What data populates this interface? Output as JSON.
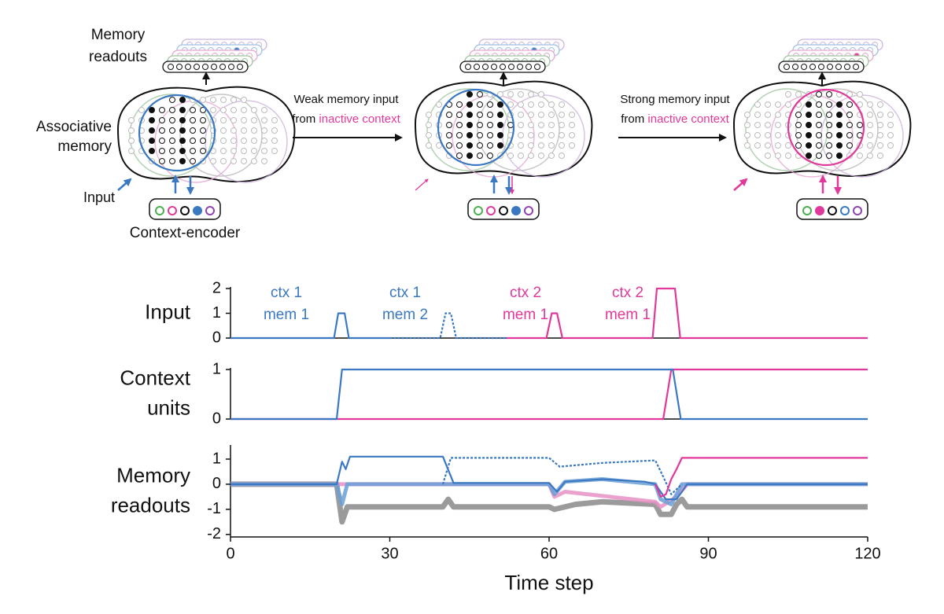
{
  "diagram": {
    "memory_readouts": [
      "Memory",
      "readouts"
    ],
    "associative_memory": [
      "Associative",
      "memory"
    ],
    "input": "Input",
    "context_encoder": "Context-encoder",
    "weak": [
      "Weak memory input",
      "from",
      "inactive context"
    ],
    "strong": [
      "Strong memory input",
      "from",
      "inactive context"
    ]
  },
  "chart_data": [
    {
      "type": "line",
      "ylabel": [
        "Input"
      ],
      "ylim": [
        0,
        2
      ],
      "yticks": [
        0,
        1,
        2
      ],
      "xlim": [
        0,
        120
      ],
      "annotations": [
        {
          "lines": [
            "ctx 1",
            "mem 1"
          ],
          "color": "#3a78c2"
        },
        {
          "lines": [
            "ctx 1",
            "mem 2"
          ],
          "color": "#3a78c2"
        },
        {
          "lines": [
            "ctx 2",
            "mem 1"
          ],
          "color": "#e0399b"
        },
        {
          "lines": [
            "ctx 2",
            "mem 1"
          ],
          "color": "#e0399b"
        }
      ],
      "series": [
        {
          "color": "#3a78c2",
          "x": [
            0,
            19.5,
            20.3,
            21.5,
            22.3,
            30
          ],
          "values": [
            0,
            0,
            1,
            1,
            0,
            0
          ]
        },
        {
          "color": "#3a78c2",
          "style": "dotted",
          "x": [
            30,
            39.5,
            40.5,
            41.5,
            42.5,
            52
          ],
          "values": [
            0,
            0,
            1,
            1,
            0,
            0
          ]
        },
        {
          "color": "#e0399b",
          "x": [
            52,
            59.5,
            60.5,
            61.5,
            62.5,
            79.5,
            80.3,
            83.7,
            84.7,
            120
          ],
          "values": [
            0,
            0,
            1,
            1,
            0,
            0,
            2,
            2,
            0,
            0
          ]
        }
      ]
    },
    {
      "type": "line",
      "ylabel": [
        "Context",
        "units"
      ],
      "ylim": [
        0,
        1
      ],
      "yticks": [
        0,
        1
      ],
      "xlim": [
        0,
        120
      ],
      "series": [
        {
          "color": "#e0399b",
          "x": [
            0,
            81.5,
            83,
            120
          ],
          "values": [
            0,
            0,
            1,
            1
          ]
        },
        {
          "color": "#3a78c2",
          "x": [
            0,
            20,
            21,
            83.3,
            84.8,
            120
          ],
          "values": [
            0,
            0,
            1,
            1,
            0,
            0
          ]
        }
      ]
    },
    {
      "type": "line",
      "ylabel": [
        "Memory",
        "readouts"
      ],
      "ylim": [
        -2.1,
        1.5
      ],
      "yticks": [
        -2,
        -1,
        0,
        1
      ],
      "xlim": [
        0,
        120
      ],
      "xticks": [
        0,
        30,
        60,
        90,
        120
      ],
      "xlabel": "Time step",
      "series": [
        {
          "color": "#8a8a8a",
          "linewidth": 7,
          "x": [
            0,
            20,
            21,
            22,
            40,
            41,
            42,
            60,
            61,
            65,
            70,
            80,
            81,
            83,
            84,
            85,
            86,
            120
          ],
          "values": [
            0,
            0,
            -1.5,
            -0.9,
            -0.9,
            -0.6,
            -0.9,
            -0.9,
            -1.0,
            -0.8,
            -0.7,
            -0.8,
            -1.2,
            -1.2,
            -0.8,
            -0.6,
            -0.9,
            -0.9
          ]
        },
        {
          "color": "#e791c4",
          "linewidth": 5,
          "x": [
            0,
            60,
            61,
            63,
            80,
            81,
            84,
            86,
            120
          ],
          "values": [
            0,
            0,
            -0.5,
            -0.3,
            -0.7,
            -0.9,
            -0.5,
            0,
            0
          ]
        },
        {
          "color": "#6b9fd6",
          "linewidth": 5,
          "x": [
            0,
            20,
            21,
            22,
            40,
            60,
            61,
            63,
            70,
            80,
            81,
            83,
            85,
            120
          ],
          "values": [
            0,
            0,
            -0.8,
            0,
            0,
            0,
            -0.4,
            0.1,
            0.2,
            0,
            -0.6,
            -0.8,
            0,
            0
          ]
        },
        {
          "color": "#3a78c2",
          "x": [
            0,
            20,
            21,
            21.7,
            22.5,
            40,
            42,
            60,
            61.5,
            63,
            70,
            78,
            80,
            81,
            82,
            84,
            86,
            120
          ],
          "values": [
            0,
            0,
            0.9,
            0.6,
            1.1,
            1.1,
            0.05,
            0.05,
            -0.3,
            0.1,
            0.2,
            0.1,
            0,
            -0.3,
            -0.6,
            -0.6,
            0,
            0
          ]
        },
        {
          "color": "#3a78c2",
          "style": "dotted",
          "x": [
            40,
            41.5,
            60,
            62,
            70,
            80,
            81.5,
            83,
            85
          ],
          "values": [
            0,
            1.05,
            1.05,
            0.7,
            0.85,
            0.95,
            0.3,
            -0.4,
            0
          ]
        },
        {
          "color": "#e0399b",
          "x": [
            80,
            81,
            82,
            83,
            84,
            85,
            120
          ],
          "values": [
            0,
            -0.5,
            -0.4,
            0.2,
            0.6,
            1.05,
            1.05
          ]
        }
      ]
    }
  ]
}
